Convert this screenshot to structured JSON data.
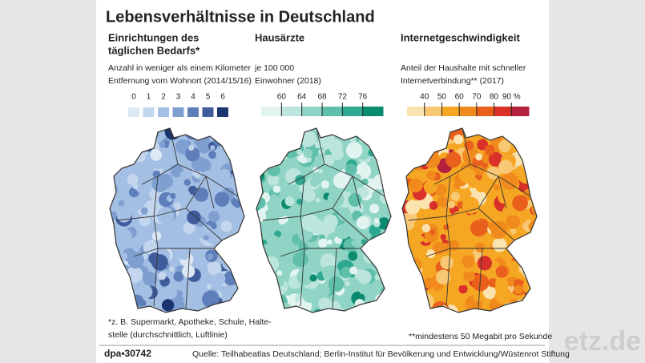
{
  "title": "Lebensverhältnisse in Deutschland",
  "panels": [
    {
      "heading": [
        "Einrichtungen des",
        "täglichen Bedarfs*"
      ],
      "subtitle": [
        "Anzahl  in weniger als einem Kilometer",
        "Entfernung vom Wohnort (2014/15/16)"
      ],
      "legend": {
        "labels": [
          "0",
          "1",
          "2",
          "3",
          "4",
          "5",
          "6"
        ],
        "colors": [
          "#dde8f5",
          "#c3d6ee",
          "#a3bfe3",
          "#7f9fd0",
          "#5f7fbb",
          "#3f5c9c",
          "#1a3470"
        ]
      },
      "footnote": [
        "*z. B. Supermarkt, Apotheke, Schule, Halte-",
        "stelle (durchschnittlich, Luftlinie)"
      ]
    },
    {
      "heading": [
        "Hausärzte"
      ],
      "subtitle": [
        "je 100 000",
        "Einwohner (2018)"
      ],
      "legend": {
        "labels": [
          "60",
          "64",
          "68",
          "72",
          "76"
        ],
        "colors": [
          "#e2f4f0",
          "#bce6dd",
          "#8fd4c4",
          "#5fbfaa",
          "#2ea890",
          "#0a8a6e"
        ]
      },
      "footnote": []
    },
    {
      "heading": [
        "Internetgeschwindigkeit"
      ],
      "subtitle": [
        "Anteil der Haushalte mit schneller",
        "Internetverbindung** (2017)"
      ],
      "legend": {
        "labels": [
          "40",
          "50",
          "60",
          "70",
          "80",
          "90 %"
        ],
        "colors": [
          "#fbe3b0",
          "#f9c874",
          "#f5a623",
          "#f08a1c",
          "#e8601c",
          "#d9302a",
          "#b3213f"
        ]
      },
      "footnote": [
        "**mindestens 50 Megabit pro Sekunde"
      ]
    }
  ],
  "footer": {
    "id": "dpa•30742",
    "source": "Quelle: Teilhabeatlas Deutschland; Berlin-Institut für Bevölkerung und Entwicklung/Wüstenrot Stiftung"
  },
  "watermark": "etz.de"
}
